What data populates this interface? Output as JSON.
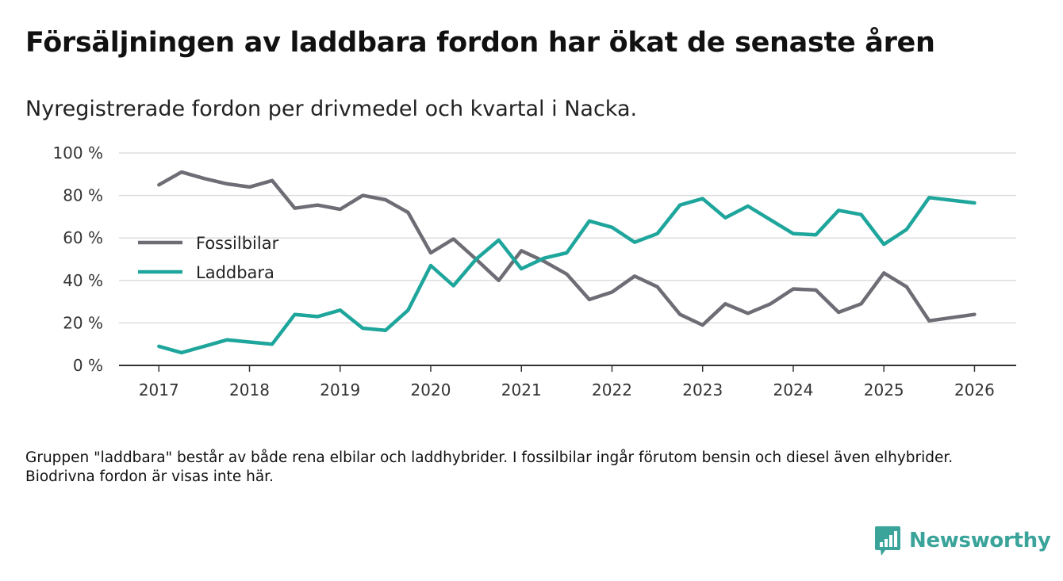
{
  "title": "Försäljningen av laddbara fordon har ökat de senaste åren",
  "subtitle": "Nyregistrerade fordon per drivmedel och kvartal i Nacka.",
  "note": "Gruppen \"laddbara\" består av både rena elbilar och laddhybrider. I fossilbilar ingår förutom bensin och diesel även elhybrider. Biodrivna fordon är visas inte här.",
  "brand": {
    "name": "Newsworthy",
    "icon": "newsworthy-logo-icon",
    "color": "#3aa39a"
  },
  "chart_data": {
    "type": "line",
    "title": "Nyregistrerade fordon per drivmedel och kvartal i Nacka.",
    "xlabel": "",
    "ylabel": "",
    "xlim": [
      2016.56,
      2026.46
    ],
    "ylim": [
      0,
      100
    ],
    "x_ticks": [
      2017,
      2018,
      2019,
      2020,
      2021,
      2022,
      2023,
      2024,
      2025,
      2026
    ],
    "x_tick_labels": [
      "2017",
      "2018",
      "2019",
      "2020",
      "2021",
      "2022",
      "2023",
      "2024",
      "2025",
      "2026"
    ],
    "y_ticks": [
      0,
      20,
      40,
      60,
      80,
      100
    ],
    "y_tick_labels": [
      "0 %",
      "20 %",
      "40 %",
      "60 %",
      "80 %",
      "100 %"
    ],
    "grid": true,
    "legend_position": "left",
    "x": [
      2017,
      2017.25,
      2017.5,
      2017.75,
      2018,
      2018.25,
      2018.5,
      2018.75,
      2019,
      2019.25,
      2019.5,
      2019.75,
      2020,
      2020.25,
      2020.5,
      2020.75,
      2021,
      2021.25,
      2021.5,
      2021.75,
      2022,
      2022.25,
      2022.5,
      2022.75,
      2023,
      2023.25,
      2023.5,
      2023.75,
      2024,
      2024.25,
      2024.5,
      2024.75,
      2025,
      2025.25,
      2025.5,
      2026
    ],
    "series": [
      {
        "name": "Fossilbilar",
        "color": "#6e6d75",
        "values": [
          85,
          91,
          88,
          85.5,
          84,
          87,
          74,
          75.5,
          73.5,
          80,
          78,
          72,
          53,
          59.5,
          50,
          40,
          54,
          49,
          43,
          31,
          34.5,
          42,
          37,
          24,
          19,
          29,
          24.5,
          29,
          36,
          35.5,
          25,
          29,
          43.5,
          37,
          21,
          24
        ]
      },
      {
        "name": "Laddbara",
        "color": "#1ea59c",
        "values": [
          9,
          6,
          9,
          12,
          11,
          10,
          24,
          23,
          26,
          17.5,
          16.5,
          26,
          47,
          37.5,
          50,
          59,
          45.5,
          50.5,
          53,
          68,
          65,
          58,
          62,
          75.5,
          78.5,
          69.5,
          75,
          68.5,
          62,
          61.5,
          73,
          71,
          57,
          64,
          79,
          76.5
        ]
      }
    ]
  }
}
